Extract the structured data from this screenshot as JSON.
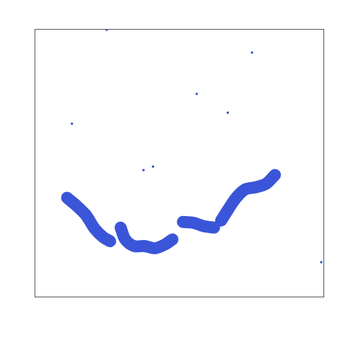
{
  "chart_data": {
    "type": "echogram",
    "xlim": [
      0,
      100
    ],
    "ylim": [
      0,
      100
    ],
    "tick_labels": false,
    "grid": false,
    "segments": [
      {
        "x": [
          11.2,
          14.1,
          17.7,
          20.8,
          23.7,
          26.1
        ],
        "y": [
          37.1,
          34.5,
          30.7,
          25.5,
          22.4,
          20.9
        ]
      },
      {
        "x": [
          29.7,
          31.3,
          34.4,
          38.0,
          41.6,
          45.2,
          47.6
        ],
        "y": [
          26.0,
          21.6,
          19.1,
          19.1,
          18.3,
          19.8,
          21.6
        ]
      },
      {
        "x": [
          51.2,
          54.8,
          58.4,
          62.0
        ],
        "y": [
          28.1,
          27.8,
          26.5,
          26.0
        ]
      },
      {
        "x": [
          64.4,
          66.7,
          69.6,
          72.7,
          76.3,
          79.9,
          83.0
        ],
        "y": [
          28.6,
          32.5,
          37.1,
          40.2,
          41.0,
          42.3,
          45.6
        ]
      }
    ],
    "specks": {
      "x": [
        56.0,
        24.9,
        37.6,
        40.9,
        99.0,
        66.7,
        12.9,
        75.1
      ],
      "y": [
        75.8,
        99.7,
        47.4,
        48.7,
        13.1,
        68.8,
        64.7,
        91.2
      ],
      "color": "#3355cc"
    }
  }
}
